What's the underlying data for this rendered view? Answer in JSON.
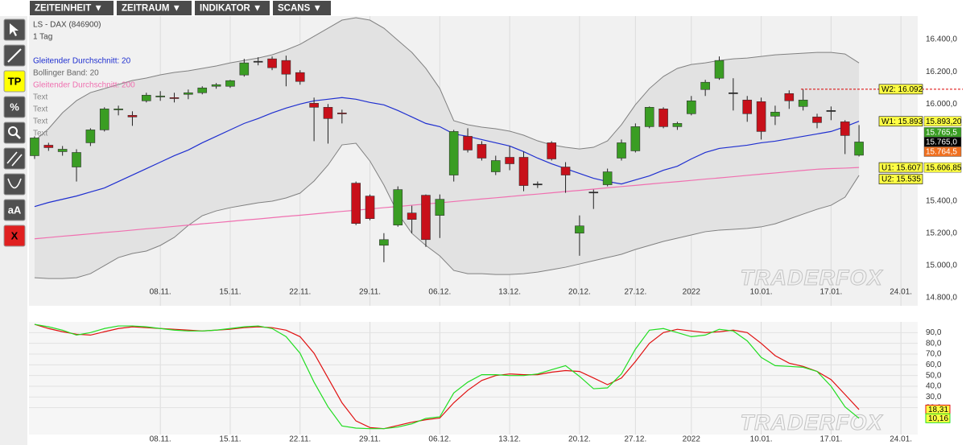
{
  "menu": [
    "ZEITEINHEIT ▼",
    "ZEITRAUM ▼",
    "INDIKATOR ▼",
    "SCANS ▼"
  ],
  "tools": [
    "TP",
    "%",
    "aA",
    "X"
  ],
  "chart_data": [
    {
      "type": "candlestick",
      "title": "LS - DAX (846900)",
      "subtitle": "1 Tag",
      "watermark": "TRADERFOX",
      "x": [
        0,
        1,
        2,
        3,
        4,
        5,
        6,
        7,
        8,
        9,
        10,
        11,
        12,
        13,
        14,
        15,
        16,
        17,
        18,
        19,
        20,
        21,
        22,
        23,
        24,
        25,
        26,
        27,
        28,
        29,
        30,
        31,
        32,
        33,
        34,
        35,
        36,
        37,
        38,
        39,
        40,
        41,
        42,
        43,
        44,
        45,
        46,
        47,
        48,
        49,
        50,
        51,
        52,
        53,
        54,
        55,
        56,
        57,
        58,
        59
      ],
      "open": [
        15680,
        15745,
        15705,
        15610,
        15760,
        15840,
        15965,
        15930,
        16020,
        16045,
        16040,
        16060,
        16070,
        16110,
        16110,
        16180,
        16265,
        16280,
        16270,
        16195,
        16005,
        15980,
        15945,
        15510,
        15430,
        15125,
        15250,
        15325,
        15435,
        15310,
        15560,
        15800,
        15750,
        15580,
        15670,
        15670,
        15505,
        15760,
        15610,
        15200,
        15455,
        15500,
        15665,
        15710,
        15860,
        15970,
        15860,
        15940,
        16090,
        16160,
        16070,
        16025,
        16015,
        15925,
        16065,
        15985,
        15920,
        15960,
        15890,
        15683
      ],
      "high": [
        15800,
        15760,
        15740,
        15720,
        15850,
        15980,
        15990,
        15955,
        16070,
        16080,
        16070,
        16090,
        16110,
        16130,
        16150,
        16280,
        16290,
        16295,
        16300,
        16210,
        16040,
        16000,
        15965,
        15520,
        15440,
        15200,
        15490,
        15370,
        15440,
        15440,
        15840,
        15850,
        15770,
        15680,
        15740,
        15705,
        15520,
        15770,
        15640,
        15310,
        15470,
        15600,
        15780,
        15880,
        15985,
        15980,
        15890,
        16050,
        16150,
        16295,
        16160,
        16050,
        16040,
        15990,
        16085,
        16090,
        15940,
        15985,
        15900,
        15870
      ],
      "low": [
        15660,
        15710,
        15680,
        15520,
        15740,
        15830,
        15930,
        15865,
        16010,
        16020,
        16010,
        16030,
        16060,
        16095,
        16100,
        16170,
        16240,
        16210,
        16110,
        16120,
        15770,
        15755,
        15880,
        15250,
        15280,
        15020,
        15240,
        15200,
        15115,
        15170,
        15520,
        15700,
        15650,
        15560,
        15590,
        15460,
        15480,
        15650,
        15450,
        15060,
        15350,
        15490,
        15650,
        15700,
        15850,
        15850,
        15840,
        15930,
        16050,
        16150,
        15960,
        15890,
        15780,
        15870,
        15970,
        15960,
        15850,
        15900,
        15690,
        15675
      ],
      "close": [
        15790,
        15730,
        15720,
        15700,
        15840,
        15970,
        15970,
        15920,
        16055,
        16050,
        16035,
        16070,
        16100,
        16120,
        16145,
        16255,
        16265,
        16225,
        16185,
        16140,
        15980,
        15910,
        15940,
        15260,
        15290,
        15160,
        15470,
        15285,
        15160,
        15410,
        15830,
        15715,
        15665,
        15650,
        15630,
        15495,
        15505,
        15660,
        15560,
        15245,
        15455,
        15580,
        15760,
        15860,
        15980,
        15860,
        15880,
        16020,
        16135,
        16270,
        16070,
        15940,
        15830,
        15950,
        16020,
        16025,
        15885,
        15960,
        15805,
        15765
      ],
      "up_color": "#3a9d23",
      "down_color": "#c8101a",
      "series": [
        {
          "name": "Gleitender Durchschnitt: 20",
          "color": "#1f2fd0",
          "values": [
            15365,
            15390,
            15410,
            15430,
            15455,
            15480,
            15520,
            15560,
            15600,
            15640,
            15680,
            15715,
            15760,
            15800,
            15840,
            15880,
            15910,
            15945,
            15975,
            16000,
            16020,
            16030,
            16040,
            16030,
            16010,
            15995,
            15960,
            15920,
            15880,
            15860,
            15815,
            15800,
            15780,
            15760,
            15740,
            15705,
            15665,
            15630,
            15600,
            15570,
            15540,
            15520,
            15505,
            15530,
            15555,
            15590,
            15615,
            15660,
            15700,
            15725,
            15735,
            15745,
            15760,
            15770,
            15785,
            15800,
            15815,
            15830,
            15860,
            15893.2
          ]
        },
        {
          "name": "Gleitender Durchschnitt: 200",
          "color": "#f070b0",
          "values": [
            15165,
            15173,
            15181,
            15188,
            15196,
            15204,
            15211,
            15219,
            15227,
            15234,
            15242,
            15250,
            15258,
            15265,
            15273,
            15281,
            15288,
            15296,
            15304,
            15311,
            15319,
            15327,
            15335,
            15342,
            15350,
            15358,
            15365,
            15373,
            15381,
            15388,
            15396,
            15404,
            15412,
            15419,
            15427,
            15435,
            15442,
            15450,
            15458,
            15465,
            15473,
            15481,
            15489,
            15496,
            15504,
            15512,
            15519,
            15527,
            15535,
            15542,
            15550,
            15558,
            15566,
            15573,
            15581,
            15589,
            15596,
            15600,
            15603,
            15606.85
          ]
        }
      ],
      "bands": {
        "name": "Bollinger Band: 20",
        "color": "#808080",
        "fill": "#e2e2e2",
        "upper": [
          15772,
          15847,
          15946,
          16021,
          16071,
          16096,
          16121,
          16146,
          16161,
          16181,
          16196,
          16206,
          16221,
          16236,
          16255,
          16270,
          16285,
          16305,
          16335,
          16370,
          16420,
          16470,
          16520,
          16535,
          16520,
          16470,
          16395,
          16320,
          16221,
          16096,
          15897,
          15872,
          15857,
          15847,
          15832,
          15807,
          15772,
          15747,
          15732,
          15722,
          15732,
          15772,
          15872,
          15996,
          16096,
          16171,
          16221,
          16245,
          16255,
          16270,
          16280,
          16285,
          16295,
          16305,
          16310,
          16315,
          16320,
          16320,
          16310,
          16255
        ],
        "lower": [
          14924,
          14919,
          14919,
          14924,
          14949,
          14999,
          15049,
          15074,
          15089,
          15124,
          15174,
          15248,
          15308,
          15338,
          15358,
          15373,
          15388,
          15398,
          15418,
          15448,
          15523,
          15622,
          15747,
          15757,
          15647,
          15498,
          15323,
          15199,
          15124,
          15059,
          14969,
          14949,
          14949,
          14944,
          14944,
          14949,
          14959,
          14974,
          14989,
          15009,
          15029,
          15049,
          15069,
          15099,
          15124,
          15149,
          15169,
          15189,
          15209,
          15219,
          15224,
          15229,
          15239,
          15258,
          15288,
          15318,
          15348,
          15373,
          15423,
          15558
        ]
      },
      "annotations": [
        "Text",
        "Text",
        "Text",
        "Text"
      ],
      "levels": [
        {
          "value": 16092,
          "label": "W2: 16.092",
          "line_color": "#dd0000"
        },
        {
          "value": 15893,
          "label": "W1: 15.893"
        },
        {
          "value": 15607,
          "label": "U1: 15.607"
        },
        {
          "value": 15535,
          "label": "U2: 15.535"
        }
      ],
      "price_labels": [
        {
          "value": 15893.2,
          "label": "15.893,20",
          "color": "#ffff44",
          "text_color": "#000000"
        },
        {
          "value": 15765.5,
          "label": "15.765,5",
          "color": "#3a9d23",
          "text_color": "#ffffff"
        },
        {
          "value": 15765.0,
          "label": "15.765,0",
          "color": "#000000",
          "text_color": "#ffffff"
        },
        {
          "value": 15764.5,
          "label": "15.764,5",
          "color": "#f07020",
          "text_color": "#ffffff"
        },
        {
          "value": 15606.85,
          "label": "15.606,85",
          "color": "#ffff44",
          "text_color": "#000000"
        }
      ],
      "xlim": [
        -0.4,
        63.2
      ],
      "xticks": [
        {
          "value": 9,
          "label": "08.11."
        },
        {
          "value": 14,
          "label": "15.11."
        },
        {
          "value": 19,
          "label": "22.11."
        },
        {
          "value": 24,
          "label": "29.11."
        },
        {
          "value": 29,
          "label": "06.12."
        },
        {
          "value": 34,
          "label": "13.12."
        },
        {
          "value": 39,
          "label": "20.12."
        },
        {
          "value": 43,
          "label": "27.12."
        },
        {
          "value": 47,
          "label": "2022"
        },
        {
          "value": 52,
          "label": "10.01."
        },
        {
          "value": 57,
          "label": "17.01."
        },
        {
          "value": 62,
          "label": "24.01."
        }
      ],
      "ylim": [
        14750,
        16545
      ],
      "yticks": [
        {
          "value": 16400,
          "label": "16.400,0"
        },
        {
          "value": 16200,
          "label": "16.200,0"
        },
        {
          "value": 16000,
          "label": "16.000,0"
        },
        {
          "value": 15400,
          "label": "15.400,0"
        },
        {
          "value": 15200,
          "label": "15.200,0"
        },
        {
          "value": 15000,
          "label": "15.000,0"
        },
        {
          "value": 14800,
          "label": "14.800,0"
        }
      ],
      "grid": "x"
    },
    {
      "type": "line",
      "watermark": "TRADERFOX",
      "x": [
        0,
        1,
        2,
        3,
        4,
        5,
        6,
        7,
        8,
        9,
        10,
        11,
        12,
        13,
        14,
        15,
        16,
        17,
        18,
        19,
        20,
        21,
        22,
        23,
        24,
        25,
        26,
        27,
        28,
        29,
        30,
        31,
        32,
        33,
        34,
        35,
        36,
        37,
        38,
        39,
        40,
        41,
        42,
        43,
        44,
        45,
        46,
        47,
        48,
        49,
        50,
        51,
        52,
        53,
        54,
        55,
        56,
        57,
        58,
        59
      ],
      "series": [
        {
          "color": "#e01010",
          "end_label": "18,31",
          "values": [
            97.7,
            93.8,
            90.8,
            88.5,
            87.7,
            90.8,
            93.8,
            95.4,
            94.6,
            93.8,
            93.1,
            92.3,
            91.5,
            92.3,
            93.1,
            94.6,
            95.4,
            94.6,
            92.3,
            86.2,
            70.8,
            47.7,
            24.6,
            7.7,
            1.5,
            0.5,
            3.5,
            6.5,
            8.8,
            10.4,
            24.6,
            36.2,
            45.4,
            50,
            51.5,
            50.8,
            50.8,
            53.1,
            54.6,
            53.8,
            47.7,
            41.5,
            47.7,
            63.1,
            80,
            90,
            93.1,
            91.5,
            90,
            90.8,
            92.3,
            90,
            80,
            68.5,
            61.5,
            58.5,
            53.8,
            46.2,
            32.3,
            18.31
          ]
        },
        {
          "color": "#22dd22",
          "end_label": "10,16",
          "values": [
            97.7,
            95.4,
            92.3,
            87.7,
            90,
            93.8,
            96.2,
            96.2,
            95.4,
            93.8,
            92.3,
            91.5,
            91.5,
            92.3,
            93.8,
            95.4,
            96.2,
            93.8,
            86.2,
            70.8,
            43.8,
            20.8,
            3,
            1,
            0.5,
            0.5,
            2,
            5,
            10,
            11.5,
            33.8,
            43.8,
            50.8,
            50.8,
            50,
            50,
            51.5,
            55.4,
            59.2,
            49.2,
            37.7,
            38.5,
            51.5,
            74.6,
            92.3,
            93.8,
            90,
            86.2,
            87.7,
            93.1,
            91.5,
            82.3,
            66.9,
            59.2,
            58.5,
            57.7,
            53.8,
            40,
            20.8,
            10.16
          ]
        }
      ],
      "xlim": [
        -0.4,
        63.2
      ],
      "xticks": [
        {
          "value": 9,
          "label": "08.11."
        },
        {
          "value": 14,
          "label": "15.11."
        },
        {
          "value": 19,
          "label": "22.11."
        },
        {
          "value": 24,
          "label": "29.11."
        },
        {
          "value": 29,
          "label": "06.12."
        },
        {
          "value": 34,
          "label": "13.12."
        },
        {
          "value": 39,
          "label": "20.12."
        },
        {
          "value": 43,
          "label": "27.12."
        },
        {
          "value": 47,
          "label": "2022"
        },
        {
          "value": 52,
          "label": "10.01."
        },
        {
          "value": 57,
          "label": "17.01."
        },
        {
          "value": 62,
          "label": "24.01."
        }
      ],
      "ylim": [
        -5,
        100
      ],
      "yticks": [
        {
          "value": 90,
          "label": "90,0"
        },
        {
          "value": 80,
          "label": "80,0"
        },
        {
          "value": 70,
          "label": "70,0"
        },
        {
          "value": 60,
          "label": "60,0"
        },
        {
          "value": 50,
          "label": "50,0"
        },
        {
          "value": 40,
          "label": "40,0"
        },
        {
          "value": 30,
          "label": "30,0"
        },
        {
          "value": 20,
          "label": "20,0"
        }
      ],
      "grid": "both"
    }
  ]
}
